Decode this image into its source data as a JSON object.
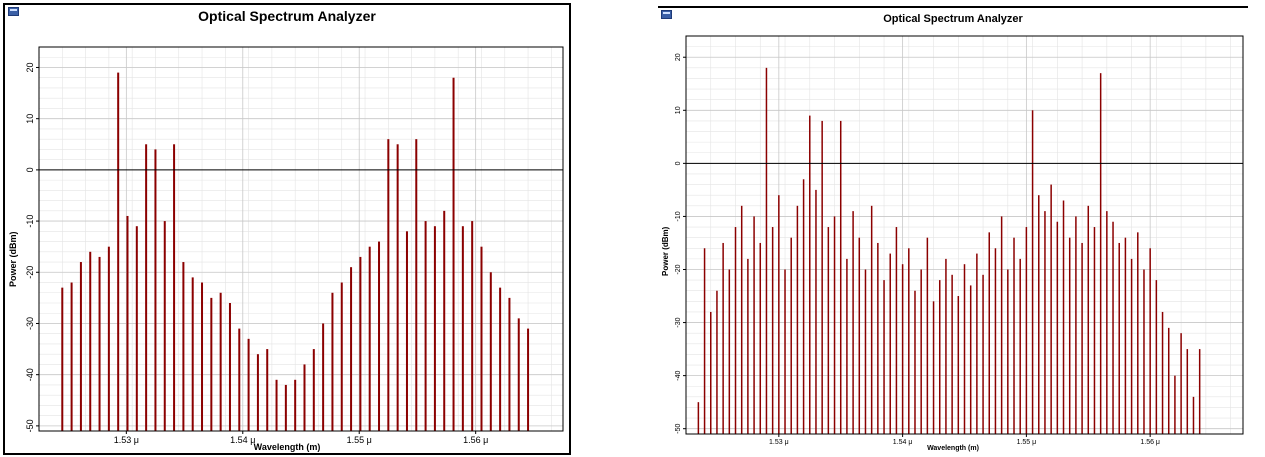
{
  "chart_data": [
    {
      "type": "bar",
      "title": "Optical Spectrum Analyzer",
      "xlabel": "Wavelength (m)",
      "ylabel": "Power (dBm)",
      "xlim": [
        1.5225,
        1.5675
      ],
      "ylim": [
        -51,
        24
      ],
      "xticks": [
        1.53,
        1.54,
        1.55,
        1.56
      ],
      "xtick_labels": [
        "1.53 μ",
        "1.54 μ",
        "1.55 μ",
        "1.56 μ"
      ],
      "yticks": [
        -50,
        -40,
        -30,
        -20,
        -10,
        0,
        10,
        20
      ],
      "ytick_labels": [
        "-50",
        "-40",
        "-30",
        "-20",
        "-10",
        "0",
        "10",
        "20"
      ],
      "reference_line": 0,
      "grid": true,
      "bar_color": "#8b0000",
      "x_unit": "μm",
      "series": [
        {
          "x": [
            1.5245,
            1.5253,
            1.5261,
            1.5269,
            1.5277,
            1.5285,
            1.5293,
            1.5301,
            1.5309,
            1.5317,
            1.5325,
            1.5333,
            1.5341,
            1.5349,
            1.5357,
            1.5365,
            1.5373,
            1.5381,
            1.5389,
            1.5397,
            1.5405,
            1.5413,
            1.5421,
            1.5429,
            1.5437,
            1.5445,
            1.5453,
            1.5461,
            1.5469,
            1.5477,
            1.5485,
            1.5493,
            1.5501,
            1.5509,
            1.5517,
            1.5525,
            1.5533,
            1.5541,
            1.5549,
            1.5557,
            1.5565,
            1.5573,
            1.5581,
            1.5589,
            1.5597,
            1.5605,
            1.5613,
            1.5621,
            1.5629,
            1.5637,
            1.5645
          ],
          "values": [
            -23,
            -22,
            -18,
            -16,
            -17,
            -15,
            19,
            -9,
            -11,
            5,
            4,
            -10,
            5,
            -18,
            -21,
            -22,
            -25,
            -24,
            -26,
            -31,
            -33,
            -36,
            -35,
            -41,
            -42,
            -41,
            -38,
            -35,
            -30,
            -24,
            -22,
            -19,
            -17,
            -15,
            -14,
            6,
            5,
            -12,
            6,
            -10,
            -11,
            -8,
            18,
            -11,
            -10,
            -15,
            -20,
            -23,
            -25,
            -29,
            -31
          ]
        }
      ]
    },
    {
      "type": "bar",
      "title": "Optical Spectrum Analyzer",
      "xlabel": "Wavelength (m)",
      "ylabel": "Power (dBm)",
      "xlim": [
        1.5225,
        1.5675
      ],
      "ylim": [
        -51,
        24
      ],
      "xticks": [
        1.53,
        1.54,
        1.55,
        1.56
      ],
      "xtick_labels": [
        "1.53 μ",
        "1.54 μ",
        "1.55 μ",
        "1.56 μ"
      ],
      "yticks": [
        -50,
        -40,
        -30,
        -20,
        -10,
        0,
        10,
        20
      ],
      "ytick_labels": [
        "-50",
        "-40",
        "-30",
        "-20",
        "-10",
        "0",
        "10",
        "20"
      ],
      "reference_line": 0,
      "grid": true,
      "bar_color": "#8b0000",
      "x_unit": "μm",
      "series": [
        {
          "x": [
            1.5235,
            1.524,
            1.5245,
            1.525,
            1.5255,
            1.526,
            1.5265,
            1.527,
            1.5275,
            1.528,
            1.5285,
            1.529,
            1.5295,
            1.53,
            1.5305,
            1.531,
            1.5315,
            1.532,
            1.5325,
            1.533,
            1.5335,
            1.534,
            1.5345,
            1.535,
            1.5355,
            1.536,
            1.5365,
            1.537,
            1.5375,
            1.538,
            1.5385,
            1.539,
            1.5395,
            1.54,
            1.5405,
            1.541,
            1.5415,
            1.542,
            1.5425,
            1.543,
            1.5435,
            1.544,
            1.5445,
            1.545,
            1.5455,
            1.546,
            1.5465,
            1.547,
            1.5475,
            1.548,
            1.5485,
            1.549,
            1.5495,
            1.55,
            1.5505,
            1.551,
            1.5515,
            1.552,
            1.5525,
            1.553,
            1.5535,
            1.554,
            1.5545,
            1.555,
            1.5555,
            1.556,
            1.5565,
            1.557,
            1.5575,
            1.558,
            1.5585,
            1.559,
            1.5595,
            1.56,
            1.5605,
            1.561,
            1.5615,
            1.562,
            1.5625,
            1.563,
            1.5635,
            1.564
          ],
          "values": [
            -45,
            -16,
            -28,
            -24,
            -15,
            -20,
            -12,
            -8,
            -18,
            -10,
            -15,
            18,
            -12,
            -6,
            -20,
            -14,
            -8,
            -3,
            9,
            -5,
            8,
            -12,
            -10,
            8,
            -18,
            -9,
            -14,
            -20,
            -8,
            -15,
            -22,
            -17,
            -12,
            -19,
            -16,
            -24,
            -20,
            -14,
            -26,
            -22,
            -18,
            -21,
            -25,
            -19,
            -23,
            -17,
            -21,
            -13,
            -16,
            -10,
            -20,
            -14,
            -18,
            -12,
            10,
            -6,
            -9,
            -4,
            -11,
            -7,
            -14,
            -10,
            -15,
            -8,
            -12,
            17,
            -9,
            -11,
            -15,
            -14,
            -18,
            -13,
            -20,
            -16,
            -22,
            -28,
            -31,
            -40,
            -32,
            -35,
            -44,
            -35
          ]
        }
      ]
    }
  ]
}
